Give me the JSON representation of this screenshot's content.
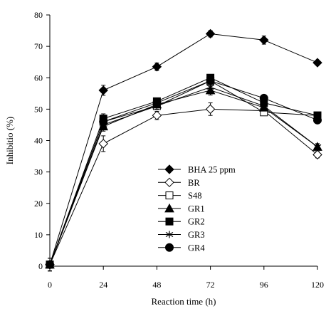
{
  "chart_data": {
    "type": "line",
    "title": "",
    "xlabel": "Reaction time (h)",
    "ylabel": "Inhibitio (%)",
    "x": [
      0,
      24,
      48,
      72,
      96,
      120
    ],
    "xlim": [
      0,
      120
    ],
    "ylim": [
      0,
      80
    ],
    "xticks": [
      0,
      24,
      48,
      72,
      96,
      120
    ],
    "yticks": [
      0,
      10,
      20,
      30,
      40,
      50,
      60,
      70,
      80
    ],
    "grid": false,
    "legend_position": "bottom-center",
    "series": [
      {
        "name": "BHA 25 ppm",
        "marker": "diamond-filled",
        "values": [
          0.5,
          56.0,
          63.5,
          74.0,
          72.0,
          64.8
        ],
        "errors": [
          2.0,
          1.6,
          1.2,
          1.0,
          1.3,
          0.4
        ]
      },
      {
        "name": "BR",
        "marker": "diamond-open",
        "values": [
          0.5,
          39.0,
          48.0,
          50.0,
          49.5,
          35.5
        ],
        "errors": [
          2.0,
          2.5,
          1.3,
          2.0,
          0.8,
          1.0
        ]
      },
      {
        "name": "S48",
        "marker": "square-open",
        "values": [
          0.5,
          46.0,
          51.0,
          59.0,
          49.0,
          48.0
        ],
        "errors": [
          2.0,
          1.2,
          1.0,
          1.0,
          0.8,
          0.8
        ]
      },
      {
        "name": "GR1",
        "marker": "triangle-filled",
        "values": [
          0.5,
          44.5,
          51.5,
          56.0,
          50.5,
          38.0
        ],
        "errors": [
          2.0,
          1.5,
          1.0,
          1.5,
          1.0,
          1.0
        ]
      },
      {
        "name": "GR2",
        "marker": "square-filled",
        "values": [
          0.5,
          47.0,
          52.5,
          60.0,
          52.0,
          48.0
        ],
        "errors": [
          2.0,
          1.5,
          1.0,
          1.0,
          1.0,
          0.8
        ]
      },
      {
        "name": "GR3",
        "marker": "asterisk",
        "values": [
          0.5,
          45.0,
          51.0,
          57.0,
          51.0,
          38.0
        ],
        "errors": [
          2.0,
          1.5,
          1.0,
          1.0,
          1.0,
          1.0
        ]
      },
      {
        "name": "GR4",
        "marker": "circle-filled",
        "values": [
          0.5,
          46.0,
          52.0,
          59.0,
          53.5,
          46.5
        ],
        "errors": [
          2.0,
          1.5,
          1.0,
          1.0,
          1.0,
          0.8
        ]
      }
    ]
  }
}
